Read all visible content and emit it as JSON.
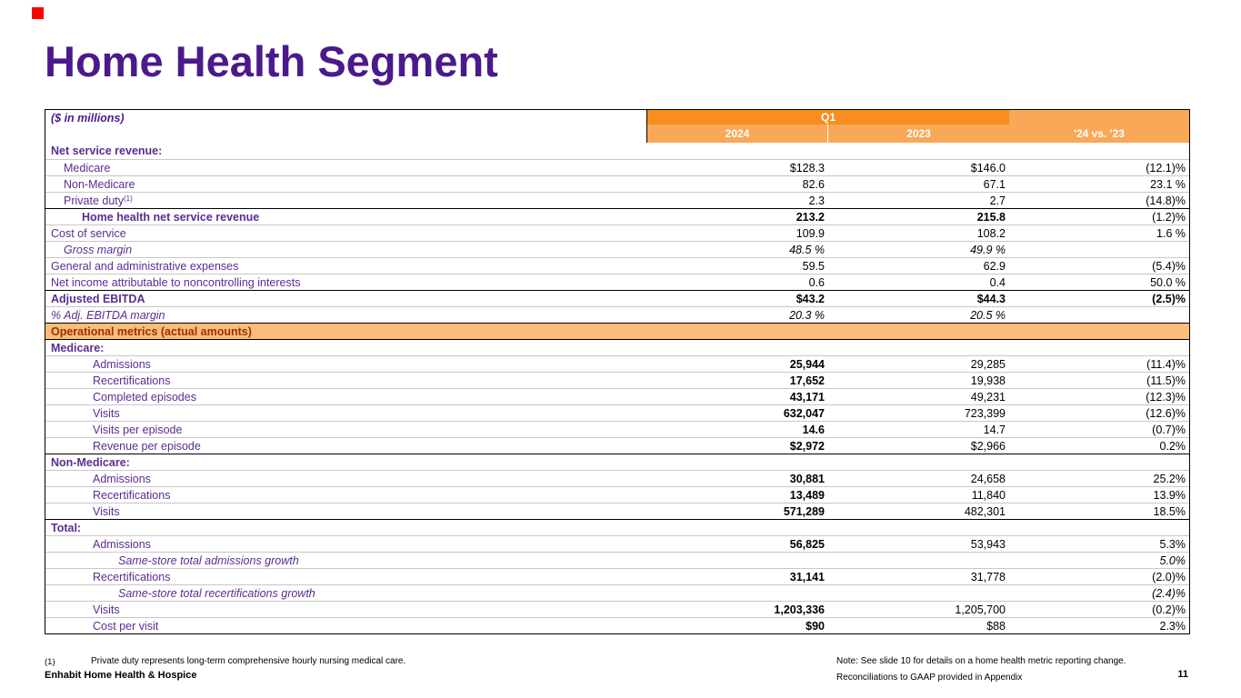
{
  "colors": {
    "purple": "#4a1a8c",
    "label_purple": "#5a2d91",
    "orange_dark": "#f88d20",
    "orange_mid": "#f9a857",
    "orange_light": "#fbbd79",
    "band_text": "#9b3000",
    "red": "#ff0000",
    "grid": "#c8c8c8"
  },
  "slide": {
    "title": "Home Health Segment"
  },
  "table": {
    "units_label": "($ in millions)",
    "quarter_label": "Q1",
    "col_headers": [
      "2024",
      "2023",
      "'24 vs. '23"
    ],
    "rows": [
      {
        "t": "row",
        "label": "Net service revenue:",
        "bl": 1,
        "ind": 0,
        "v1": "",
        "v2": "",
        "v3": ""
      },
      {
        "t": "row",
        "label": "Medicare",
        "ind": 1,
        "v1": "$128.3",
        "v2": "$146.0",
        "v3": "(12.1)%"
      },
      {
        "t": "row",
        "label": "Non-Medicare",
        "ind": 1,
        "v1": "82.6",
        "v2": "67.1",
        "v3": "23.1 %"
      },
      {
        "t": "row",
        "label": "Private duty",
        "sup": "(1)",
        "ind": 1,
        "v1": "2.3",
        "v2": "2.7",
        "v3": "(14.8)%"
      },
      {
        "t": "row",
        "label": "Home health net service revenue",
        "bl": 1,
        "b1": 1,
        "b2": 1,
        "ind": 2,
        "v1": "213.2",
        "v2": "215.8",
        "v3": "(1.2)%",
        "top": "black"
      },
      {
        "t": "row",
        "label": "Cost of service",
        "ind": 0,
        "v1": "109.9",
        "v2": "108.2",
        "v3": "1.6 %"
      },
      {
        "t": "row",
        "label": "Gross margin",
        "italic": 1,
        "ind": 1,
        "v1": "48.5 %",
        "v2": "49.9 %",
        "v3": ""
      },
      {
        "t": "row",
        "label": "General and administrative expenses",
        "ind": 0,
        "v1": "59.5",
        "v2": "62.9",
        "v3": "(5.4)%"
      },
      {
        "t": "row",
        "label": "Net income attributable to noncontrolling interests",
        "ind": 0,
        "v1": "0.6",
        "v2": "0.4",
        "v3": "50.0 %"
      },
      {
        "t": "row",
        "label": "Adjusted EBITDA",
        "bl": 1,
        "b1": 1,
        "b2": 1,
        "b3": 1,
        "ind": 0,
        "v1": "$43.2",
        "v2": "$44.3",
        "v3": "(2.5)%",
        "top": "black"
      },
      {
        "t": "row",
        "label": "% Adj. EBITDA margin",
        "italic": 1,
        "ind": 0,
        "v1": "20.3 %",
        "v2": "20.5 %",
        "v3": ""
      },
      {
        "t": "band",
        "label": "Operational metrics (actual amounts)",
        "top": "black"
      },
      {
        "t": "row",
        "label": "Medicare:",
        "bl": 1,
        "ind": 0,
        "v1": "",
        "v2": "",
        "v3": "",
        "top": "black"
      },
      {
        "t": "row",
        "label": "Admissions",
        "ind": 3,
        "b1": 1,
        "v1": "25,944",
        "v2": "29,285",
        "v3": "(11.4)%"
      },
      {
        "t": "row",
        "label": "Recertifications",
        "ind": 3,
        "b1": 1,
        "v1": "17,652",
        "v2": "19,938",
        "v3": "(11.5)%"
      },
      {
        "t": "row",
        "label": "Completed episodes",
        "ind": 3,
        "b1": 1,
        "v1": "43,171",
        "v2": "49,231",
        "v3": "(12.3)%"
      },
      {
        "t": "row",
        "label": "Visits",
        "ind": 3,
        "b1": 1,
        "v1": "632,047",
        "v2": "723,399",
        "v3": "(12.6)%"
      },
      {
        "t": "row",
        "label": "Visits per episode",
        "ind": 3,
        "b1": 1,
        "v1": "14.6",
        "v2": "14.7",
        "v3": "(0.7)%"
      },
      {
        "t": "row",
        "label": "Revenue per episode",
        "ind": 3,
        "b1": 1,
        "v1": "$2,972",
        "v2": "$2,966",
        "v3": "0.2%"
      },
      {
        "t": "row",
        "label": "Non-Medicare:",
        "bl": 1,
        "ind": 0,
        "v1": "",
        "v2": "",
        "v3": "",
        "top": "black"
      },
      {
        "t": "row",
        "label": "Admissions",
        "ind": 3,
        "b1": 1,
        "v1": "30,881",
        "v2": "24,658",
        "v3": "25.2%"
      },
      {
        "t": "row",
        "label": "Recertifications",
        "ind": 3,
        "b1": 1,
        "v1": "13,489",
        "v2": "11,840",
        "v3": "13.9%"
      },
      {
        "t": "row",
        "label": "Visits",
        "ind": 3,
        "b1": 1,
        "v1": "571,289",
        "v2": "482,301",
        "v3": "18.5%"
      },
      {
        "t": "row",
        "label": "Total:",
        "bl": 1,
        "ind": 0,
        "v1": "",
        "v2": "",
        "v3": "",
        "top": "black"
      },
      {
        "t": "row",
        "label": "Admissions",
        "ind": 3,
        "b1": 1,
        "v1": "56,825",
        "v2": "53,943",
        "v3": "5.3%"
      },
      {
        "t": "row",
        "label": "Same-store total admissions growth",
        "italic": 1,
        "ind": 4,
        "v1": "",
        "v2": "",
        "v3": "5.0%"
      },
      {
        "t": "row",
        "label": "Recertifications",
        "ind": 3,
        "b1": 1,
        "v1": "31,141",
        "v2": "31,778",
        "v3": "(2.0)%"
      },
      {
        "t": "row",
        "label": "Same-store total recertifications growth",
        "italic": 1,
        "ind": 4,
        "v1": "",
        "v2": "",
        "v3": "(2.4)%"
      },
      {
        "t": "row",
        "label": "Visits",
        "ind": 3,
        "b1": 1,
        "v1": "1,203,336",
        "v2": "1,205,700",
        "v3": "(0.2)%"
      },
      {
        "t": "row",
        "label": "Cost per visit",
        "ind": 3,
        "b1": 1,
        "v1": "$90",
        "v2": "$88",
        "v3": "2.3%"
      }
    ]
  },
  "footer": {
    "footnote_marker": "(1)",
    "footnote_text": "Private duty represents long-term comprehensive hourly nursing medical care.",
    "brand": "Enhabit Home Health & Hospice",
    "note_line1": "Note: See slide 10 for details on a home health metric reporting change.",
    "note_line2": "Reconciliations to GAAP provided in Appendix",
    "page_number": "11"
  }
}
